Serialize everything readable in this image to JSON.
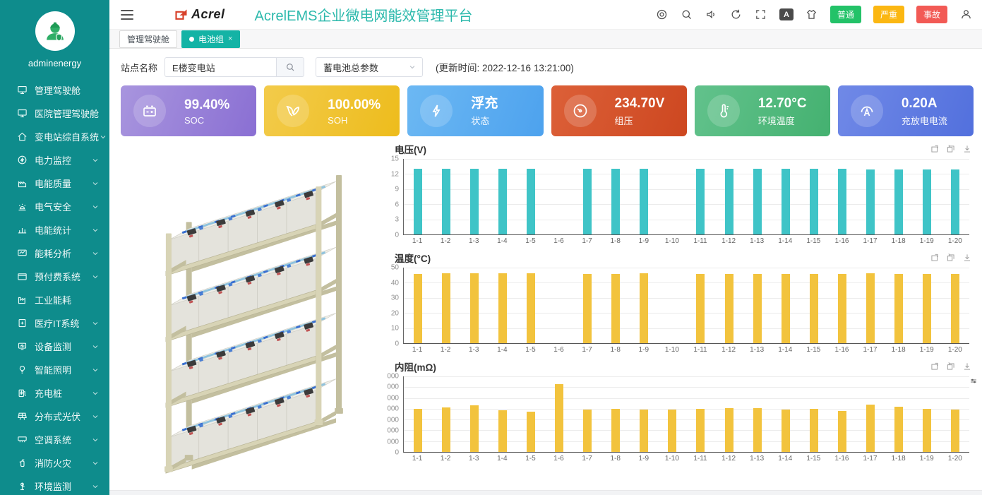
{
  "sidebar": {
    "username": "adminenergy",
    "items": [
      {
        "label": "管理驾驶舱",
        "icon": "monitor-icon",
        "sym": "monitor",
        "chevron": false
      },
      {
        "label": "医院管理驾驶舱",
        "icon": "monitor-icon",
        "sym": "monitor",
        "chevron": false
      },
      {
        "label": "变电站综自系统",
        "icon": "home-icon",
        "sym": "home",
        "chevron": true
      },
      {
        "label": "电力监控",
        "icon": "power-icon",
        "sym": "power",
        "chevron": true
      },
      {
        "label": "电能质量",
        "icon": "factory-icon",
        "sym": "factory",
        "chevron": true
      },
      {
        "label": "电气安全",
        "icon": "alarm-icon",
        "sym": "alarm",
        "chevron": true
      },
      {
        "label": "电能统计",
        "icon": "bar-chart-icon",
        "sym": "bars",
        "chevron": true
      },
      {
        "label": "能耗分析",
        "icon": "analysis-icon",
        "sym": "analysis",
        "chevron": true
      },
      {
        "label": "预付费系统",
        "icon": "prepay-icon",
        "sym": "card",
        "chevron": true
      },
      {
        "label": "工业能耗",
        "icon": "industry-icon",
        "sym": "industry",
        "chevron": false
      },
      {
        "label": "医疗IT系统",
        "icon": "medical-icon",
        "sym": "medical",
        "chevron": true
      },
      {
        "label": "设备监测",
        "icon": "device-icon",
        "sym": "device",
        "chevron": true
      },
      {
        "label": "智能照明",
        "icon": "bulb-icon",
        "sym": "bulb",
        "chevron": true
      },
      {
        "label": "充电桩",
        "icon": "charger-icon",
        "sym": "charger",
        "chevron": true
      },
      {
        "label": "分布式光伏",
        "icon": "solar-icon",
        "sym": "solar",
        "chevron": true
      },
      {
        "label": "空调系统",
        "icon": "ac-icon",
        "sym": "ac",
        "chevron": true
      },
      {
        "label": "消防火灾",
        "icon": "fire-icon",
        "sym": "fire",
        "chevron": true
      },
      {
        "label": "环境监测",
        "icon": "env-icon",
        "sym": "env",
        "chevron": true
      }
    ]
  },
  "header": {
    "brand": "Acrel",
    "title": "AcrelEMS企业微电网能效管理平台",
    "toolbar_icons": [
      {
        "name": "dashboard-icon",
        "sym": "target"
      },
      {
        "name": "search-icon",
        "sym": "search"
      },
      {
        "name": "volume-icon",
        "sym": "volume"
      },
      {
        "name": "refresh-icon",
        "sym": "refresh"
      },
      {
        "name": "fullscreen-icon",
        "sym": "expand"
      },
      {
        "name": "language-icon",
        "sym": "lang",
        "text": "A"
      },
      {
        "name": "theme-icon",
        "sym": "shirt"
      }
    ],
    "alarm_buttons": [
      {
        "label": "普通",
        "color": "#23c268"
      },
      {
        "label": "严重",
        "color": "#fbb712"
      },
      {
        "label": "事故",
        "color": "#f25a55"
      }
    ]
  },
  "tabs": [
    {
      "label": "管理驾驶舱",
      "active": false,
      "closable": false
    },
    {
      "label": "电池组",
      "active": true,
      "closable": true
    }
  ],
  "filter": {
    "site_label": "站点名称",
    "site_value": "E楼变电站",
    "param_value": "蓄电池总参数",
    "update_time": "(更新时间: 2022-12-16 13:21:00)"
  },
  "kpi_cards": [
    {
      "value": "99.40%",
      "label": "SOC",
      "icon": "battery-icon",
      "sym": "battery",
      "from": "#a895de",
      "to": "#8a6fd3"
    },
    {
      "value": "100.00%",
      "label": "SOH",
      "icon": "leaf-icon",
      "sym": "leaf",
      "from": "#f3cb4b",
      "to": "#edbc1c"
    },
    {
      "value": "浮充",
      "label": "状态",
      "icon": "bolt-icon",
      "sym": "bolt",
      "from": "#6cb8f3",
      "to": "#4da2ee"
    },
    {
      "value": "234.70V",
      "label": "组压",
      "icon": "gauge-icon",
      "sym": "gauge",
      "from": "#dc6038",
      "to": "#cd4720"
    },
    {
      "value": "12.70°C",
      "label": "环境温度",
      "icon": "thermometer-icon",
      "sym": "thermo",
      "from": "#62c28c",
      "to": "#44b170"
    },
    {
      "value": "0.20A",
      "label": "充放电电流",
      "icon": "ammeter-icon",
      "sym": "ammeter",
      "from": "#7089e7",
      "to": "#5270dd"
    }
  ],
  "chart_data": [
    {
      "type": "bar",
      "title": "电压(V)",
      "color": "#3fc4c7",
      "categories": [
        "1-1",
        "1-2",
        "1-3",
        "1-4",
        "1-5",
        "1-6",
        "1-7",
        "1-8",
        "1-9",
        "1-10",
        "1-11",
        "1-12",
        "1-13",
        "1-14",
        "1-15",
        "1-16",
        "1-17",
        "1-18",
        "1-19",
        "1-20"
      ],
      "values": [
        13.1,
        13.1,
        13.1,
        13.1,
        13.1,
        0,
        13.05,
        13.05,
        13.05,
        0,
        13.1,
        13.1,
        13.1,
        13.1,
        13.1,
        13.1,
        12.9,
        12.9,
        12.9,
        12.9
      ],
      "ylim": [
        0,
        15
      ],
      "ytick_labels": [
        "15",
        "12",
        "9",
        "6",
        "3",
        "0"
      ],
      "grid": true,
      "legend_position": "none"
    },
    {
      "type": "bar",
      "title": "温度(°C)",
      "color": "#f2c33d",
      "categories": [
        "1-1",
        "1-2",
        "1-3",
        "1-4",
        "1-5",
        "1-6",
        "1-7",
        "1-8",
        "1-9",
        "1-10",
        "1-11",
        "1-12",
        "1-13",
        "1-14",
        "1-15",
        "1-16",
        "1-17",
        "1-18",
        "1-19",
        "1-20"
      ],
      "values": [
        46,
        46.3,
        46.5,
        46.5,
        46.3,
        0,
        46,
        46,
        46.2,
        0,
        45.8,
        46,
        46,
        45.9,
        45.7,
        46,
        46.3,
        46,
        45.9,
        45.8
      ],
      "ylim": [
        0,
        50
      ],
      "ytick_labels": [
        "50",
        "40",
        "30",
        "20",
        "10",
        "0"
      ],
      "grid": true,
      "legend_position": "none"
    },
    {
      "type": "bar",
      "title": "内阻(mΩ)",
      "color": "#f2c33d",
      "categories": [
        "1-1",
        "1-2",
        "1-3",
        "1-4",
        "1-5",
        "1-6",
        "1-7",
        "1-8",
        "1-9",
        "1-10",
        "1-11",
        "1-12",
        "1-13",
        "1-14",
        "1-15",
        "1-16",
        "1-17",
        "1-18",
        "1-19",
        "1-20"
      ],
      "values": [
        4000,
        4150,
        4300,
        3850,
        3750,
        6300,
        3900,
        4000,
        3950,
        3900,
        4000,
        4080,
        4080,
        3950,
        4000,
        3800,
        4400,
        4200,
        4000,
        3900
      ],
      "ylim": [
        0,
        7000
      ],
      "ytick_labels": [
        "000",
        "000",
        "000",
        "000",
        "000",
        "000",
        "000",
        "0"
      ],
      "grid": true,
      "legend_position": "none",
      "side_icon": "data-zoom-icon"
    }
  ]
}
